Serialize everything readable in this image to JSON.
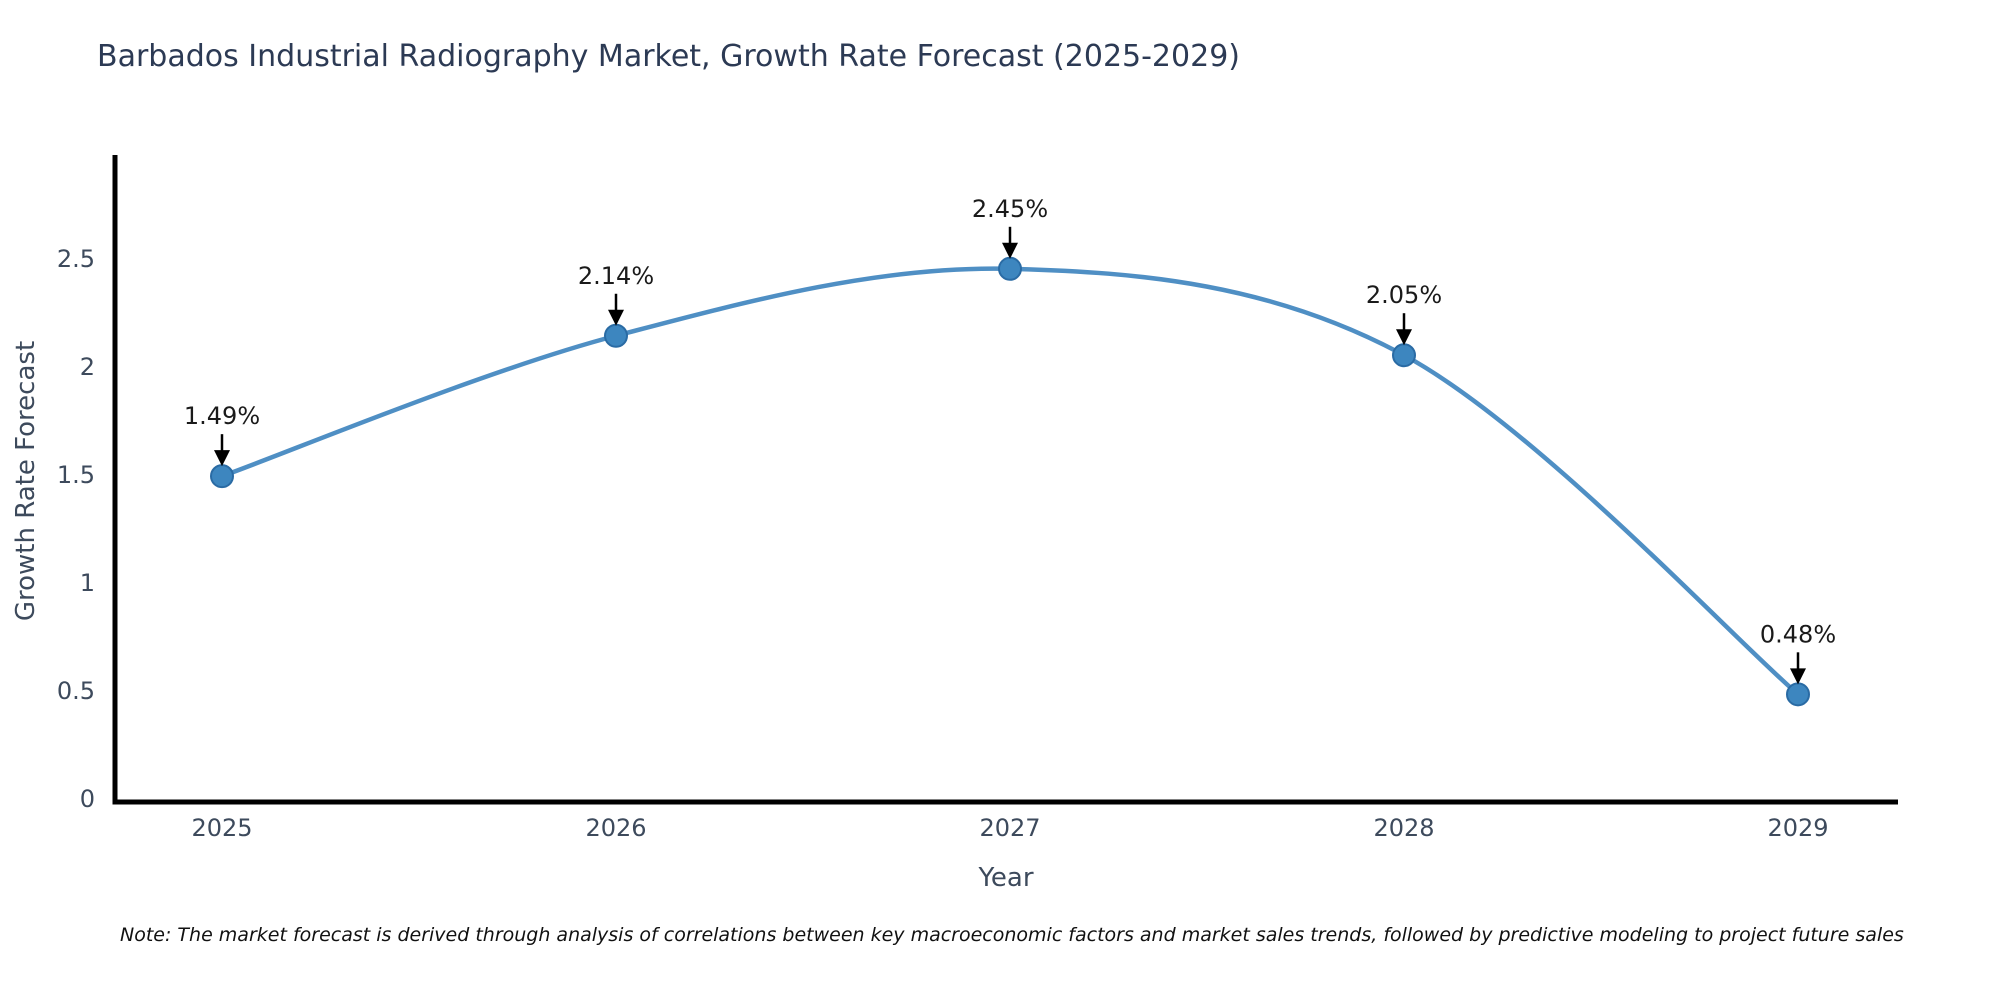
{
  "page": {
    "background": "#ffffff"
  },
  "chart_data": {
    "type": "line",
    "title": "Barbados Industrial Radiography Market, Growth Rate Forecast (2025-2029)",
    "xlabel": "Year",
    "ylabel": "Growth Rate Forecast",
    "categories": [
      "2025",
      "2026",
      "2027",
      "2028",
      "2029"
    ],
    "values": [
      1.49,
      2.14,
      2.45,
      2.05,
      0.48
    ],
    "point_labels": [
      "1.49%",
      "2.14%",
      "2.45%",
      "2.05%",
      "0.48%"
    ],
    "yticks": [
      0,
      0.5,
      1,
      1.5,
      2,
      2.5
    ],
    "ylim": [
      0,
      3.0
    ],
    "grid": false,
    "legend": "none",
    "smooth_curve": true,
    "colors": {
      "line": "#4f8fc4",
      "marker_fill": "#3d86bf",
      "marker_edge": "#2a6ba4",
      "annotation_text": "#1a1a1a",
      "annotation_arrow": "#000000",
      "title": "#2c3a54",
      "axis_text": "#3d4a5c",
      "axis_line": "#000000",
      "note_text": "#111111"
    },
    "note": "Note: The market forecast is derived through analysis of correlations between key macroeconomic factors and market sales trends, followed by predictive modeling to project future sales"
  }
}
